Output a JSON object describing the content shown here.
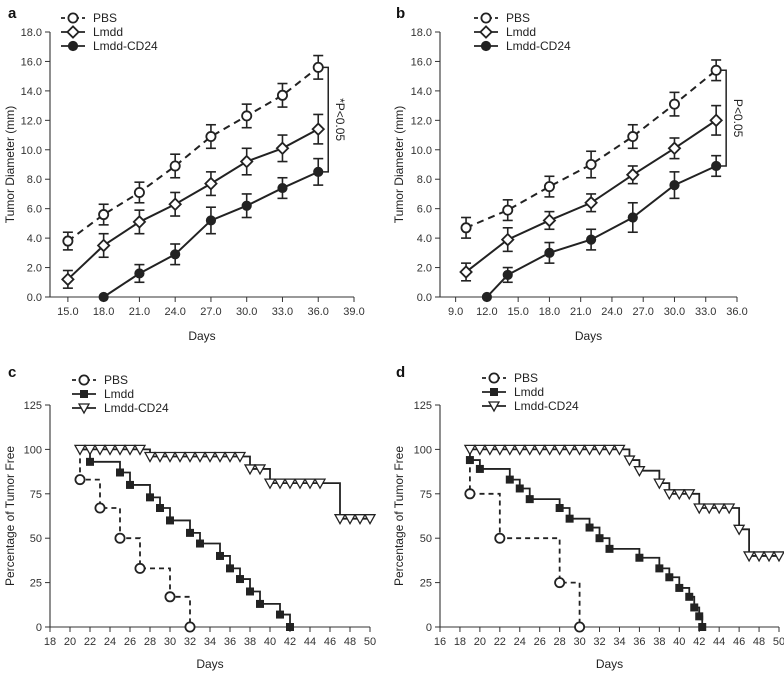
{
  "chart_data": [
    {
      "panel": "a",
      "type": "line",
      "xlabel": "Days",
      "ylabel": "Tumor Diameter (mm)",
      "xlim": [
        13.5,
        39.0
      ],
      "ylim": [
        0,
        18
      ],
      "xticks": [
        15,
        18,
        21,
        24,
        27,
        30,
        33,
        36,
        39
      ],
      "xticklabels": [
        "15.0",
        "18.0",
        "21.0",
        "24.0",
        "27.0",
        "30.0",
        "33.0",
        "36.0",
        "39.0"
      ],
      "yticks": [
        0,
        2,
        4,
        6,
        8,
        10,
        12,
        14,
        16,
        18
      ],
      "yticklabels": [
        "0.0",
        "2.0",
        "4.0",
        "6.0",
        "8.0",
        "10.0",
        "12.0",
        "14.0",
        "16.0",
        "18.0"
      ],
      "series": [
        {
          "name": "PBS",
          "marker": "open-circle",
          "dash": "dashed",
          "x": [
            15,
            18,
            21,
            24,
            27,
            30,
            33,
            36
          ],
          "y": [
            3.8,
            5.6,
            7.1,
            8.9,
            10.9,
            12.3,
            13.7,
            15.6
          ],
          "err": [
            0.6,
            0.7,
            0.7,
            0.8,
            0.8,
            0.8,
            0.8,
            0.8
          ]
        },
        {
          "name": "Lmdd",
          "marker": "open-diamond",
          "dash": "solid",
          "x": [
            15,
            18,
            21,
            24,
            27,
            30,
            33,
            36
          ],
          "y": [
            1.2,
            3.5,
            5.1,
            6.3,
            7.7,
            9.2,
            10.1,
            11.4
          ],
          "err": [
            0.6,
            0.8,
            0.8,
            0.8,
            0.8,
            0.9,
            0.9,
            1.0
          ]
        },
        {
          "name": "Lmdd-CD24",
          "marker": "filled-circle",
          "dash": "solid",
          "x": [
            18,
            21,
            24,
            27,
            30,
            33,
            36
          ],
          "y": [
            0.0,
            1.6,
            2.9,
            5.2,
            6.2,
            7.4,
            8.5
          ],
          "err": [
            0,
            0.6,
            0.7,
            0.9,
            0.8,
            0.7,
            0.9
          ]
        }
      ],
      "legend": [
        "PBS",
        "Lmdd",
        "Lmdd-CD24"
      ],
      "annotation": "*P<0.05"
    },
    {
      "panel": "b",
      "type": "line",
      "xlabel": "Days",
      "ylabel": "Tumor Diameter (mm)",
      "xlim": [
        7.5,
        36.0
      ],
      "ylim": [
        0,
        18
      ],
      "xticks": [
        9,
        12,
        15,
        18,
        21,
        24,
        27,
        30,
        33,
        36
      ],
      "xticklabels": [
        "9.0",
        "12.0",
        "15.0",
        "18.0",
        "21.0",
        "24.0",
        "27.0",
        "30.0",
        "33.0",
        "36.0"
      ],
      "yticks": [
        0,
        2,
        4,
        6,
        8,
        10,
        12,
        14,
        16,
        18
      ],
      "yticklabels": [
        "0.0",
        "2.0",
        "4.0",
        "6.0",
        "8.0",
        "10.0",
        "12.0",
        "14.0",
        "16.0",
        "18.0"
      ],
      "series": [
        {
          "name": "PBS",
          "marker": "open-circle",
          "dash": "dashed",
          "x": [
            10,
            14,
            18,
            22,
            26,
            30,
            34
          ],
          "y": [
            4.7,
            5.9,
            7.5,
            9.0,
            10.9,
            13.1,
            15.4
          ],
          "err": [
            0.7,
            0.7,
            0.7,
            0.9,
            0.8,
            0.8,
            0.7
          ]
        },
        {
          "name": "Lmdd",
          "marker": "open-diamond",
          "dash": "solid",
          "x": [
            10,
            14,
            18,
            22,
            26,
            30,
            34
          ],
          "y": [
            1.7,
            3.9,
            5.2,
            6.4,
            8.3,
            10.1,
            12.0
          ],
          "err": [
            0.6,
            0.8,
            0.6,
            0.6,
            0.6,
            0.7,
            1.0
          ]
        },
        {
          "name": "Lmdd-CD24",
          "marker": "filled-circle",
          "dash": "solid",
          "x": [
            12,
            14,
            18,
            22,
            26,
            30,
            34
          ],
          "y": [
            0.0,
            1.5,
            3.0,
            3.9,
            5.4,
            7.6,
            8.9
          ],
          "err": [
            0,
            0.5,
            0.7,
            0.7,
            1.0,
            0.9,
            0.7
          ]
        }
      ],
      "legend": [
        "PBS",
        "Lmdd",
        "Lmdd-CD24"
      ],
      "annotation": "P<0.05"
    },
    {
      "panel": "c",
      "type": "line",
      "subtype": "step",
      "xlabel": "Days",
      "ylabel": "Percentage of Tumor Free",
      "xlim": [
        18,
        50
      ],
      "ylim": [
        0,
        125
      ],
      "xticks": [
        18,
        20,
        22,
        24,
        26,
        28,
        30,
        32,
        34,
        36,
        38,
        40,
        42,
        44,
        46,
        48,
        50
      ],
      "xticklabels": [
        "18",
        "20",
        "22",
        "24",
        "26",
        "28",
        "30",
        "32",
        "34",
        "36",
        "38",
        "40",
        "42",
        "44",
        "46",
        "48",
        "50"
      ],
      "yticks": [
        0,
        25,
        50,
        75,
        100,
        125
      ],
      "yticklabels": [
        "0",
        "25",
        "50",
        "75",
        "100",
        "125"
      ],
      "series": [
        {
          "name": "PBS",
          "marker": "open-circle",
          "dash": "dashed",
          "steps": [
            [
              21,
              83
            ],
            [
              23,
              67
            ],
            [
              25,
              50
            ],
            [
              27,
              33
            ],
            [
              30,
              17
            ],
            [
              32,
              0
            ]
          ],
          "start": [
            21,
            100
          ]
        },
        {
          "name": "Lmdd",
          "marker": "filled-square",
          "dash": "solid",
          "steps": [
            [
              22,
              93
            ],
            [
              25,
              87
            ],
            [
              26,
              80
            ],
            [
              28,
              73
            ],
            [
              29,
              67
            ],
            [
              30,
              60
            ],
            [
              32,
              53
            ],
            [
              33,
              47
            ],
            [
              35,
              40
            ],
            [
              36,
              33
            ],
            [
              37,
              27
            ],
            [
              38,
              20
            ],
            [
              39,
              13
            ],
            [
              41,
              7
            ],
            [
              42,
              0
            ]
          ],
          "start": [
            21,
            100
          ]
        },
        {
          "name": "Lmdd-CD24",
          "marker": "open-triangle-down",
          "dash": "solid",
          "steps": [
            [
              28,
              96
            ],
            [
              38,
              89
            ],
            [
              40,
              81
            ],
            [
              47,
              61
            ]
          ],
          "start": [
            21,
            100
          ],
          "end": 50,
          "markers_x": [
            21,
            22,
            23,
            24,
            25,
            26,
            27,
            28,
            29,
            30,
            31,
            32,
            33,
            34,
            35,
            36,
            37,
            38,
            39,
            40,
            41,
            42,
            43,
            44,
            45,
            47,
            48,
            49,
            50
          ]
        }
      ],
      "legend": [
        "PBS",
        "Lmdd",
        "Lmdd-CD24"
      ]
    },
    {
      "panel": "d",
      "type": "line",
      "subtype": "step",
      "xlabel": "Days",
      "ylabel": "Percentage of Tumor Free",
      "xlim": [
        16,
        50
      ],
      "ylim": [
        0,
        125
      ],
      "xticks": [
        16,
        18,
        20,
        22,
        24,
        26,
        28,
        30,
        32,
        34,
        36,
        38,
        40,
        42,
        44,
        46,
        48,
        50
      ],
      "xticklabels": [
        "16",
        "18",
        "20",
        "22",
        "24",
        "26",
        "28",
        "30",
        "32",
        "34",
        "36",
        "38",
        "40",
        "42",
        "44",
        "46",
        "48",
        "50"
      ],
      "yticks": [
        0,
        25,
        50,
        75,
        100,
        125
      ],
      "yticklabels": [
        "0",
        "25",
        "50",
        "75",
        "100",
        "125"
      ],
      "series": [
        {
          "name": "PBS",
          "marker": "open-circle",
          "dash": "dashed",
          "steps": [
            [
              19,
              75
            ],
            [
              22,
              50
            ],
            [
              28,
              25
            ],
            [
              30,
              0
            ]
          ],
          "start": [
            19,
            100
          ]
        },
        {
          "name": "Lmdd",
          "marker": "filled-square",
          "dash": "solid",
          "steps": [
            [
              19,
              94
            ],
            [
              20,
              89
            ],
            [
              23,
              83
            ],
            [
              24,
              78
            ],
            [
              25,
              72
            ],
            [
              28,
              67
            ],
            [
              29,
              61
            ],
            [
              31,
              56
            ],
            [
              32,
              50
            ],
            [
              33,
              44
            ],
            [
              36,
              39
            ],
            [
              38,
              33
            ],
            [
              39,
              28
            ],
            [
              40,
              22
            ],
            [
              41,
              17
            ],
            [
              41.5,
              11
            ],
            [
              42,
              6
            ],
            [
              42.3,
              0
            ]
          ],
          "start": [
            19,
            100
          ]
        },
        {
          "name": "Lmdd-CD24",
          "marker": "open-triangle-down",
          "dash": "solid",
          "steps": [
            [
              35,
              94
            ],
            [
              36,
              88
            ],
            [
              38,
              81
            ],
            [
              39,
              75
            ],
            [
              42,
              67
            ],
            [
              46,
              55
            ],
            [
              47,
              40
            ]
          ],
          "start": [
            19,
            100
          ],
          "end": 50,
          "markers_x": [
            19,
            20,
            21,
            22,
            23,
            24,
            25,
            26,
            27,
            28,
            29,
            30,
            31,
            32,
            33,
            34,
            35,
            36,
            38,
            39,
            40,
            41,
            42,
            43,
            44,
            45,
            46,
            47,
            48,
            49,
            50
          ]
        }
      ],
      "legend": [
        "PBS",
        "Lmdd",
        "Lmdd-CD24"
      ]
    }
  ]
}
